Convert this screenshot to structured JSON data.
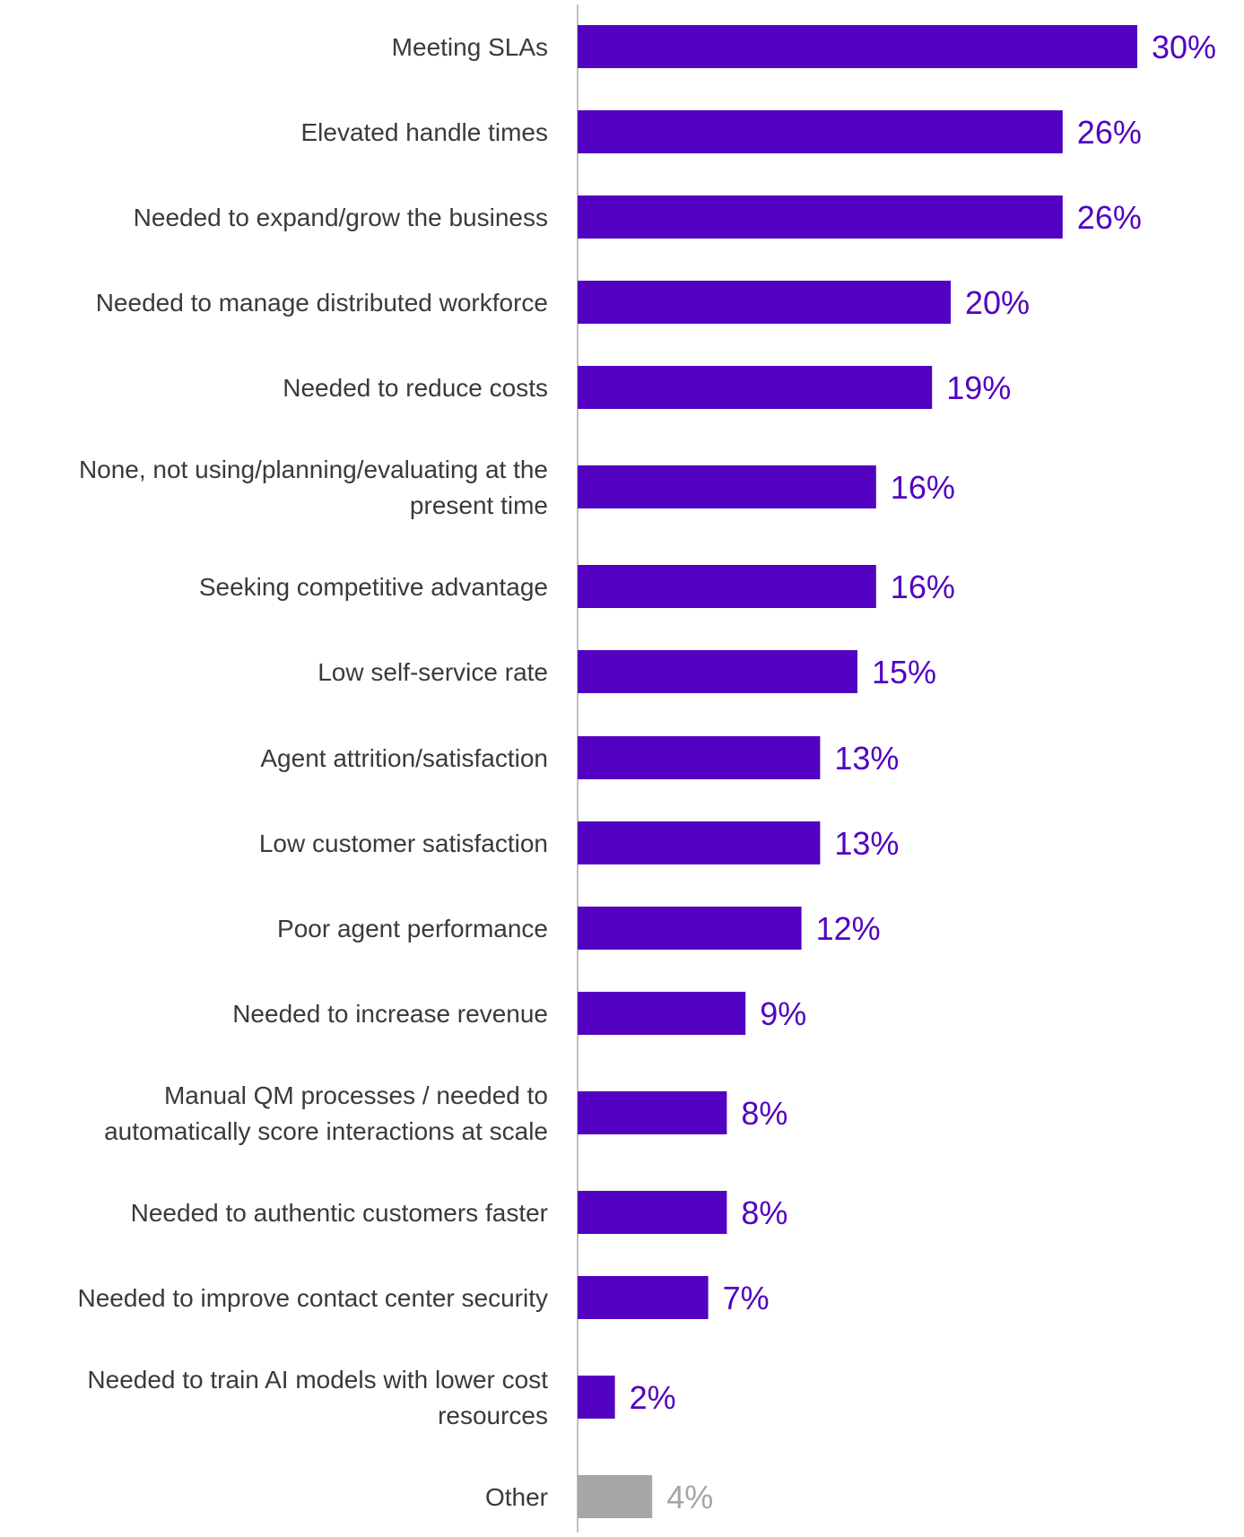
{
  "colors": {
    "bar": "#5202C0",
    "other_bar": "#A6A6A6",
    "axis": "#BFBFBF",
    "label_text": "#3A3A3A"
  },
  "chart_data": {
    "type": "bar",
    "orientation": "horizontal",
    "title": "",
    "xlabel": "",
    "ylabel": "",
    "xlim": [
      0,
      30
    ],
    "grid": false,
    "legend": "none",
    "categories": [
      "Meeting SLAs",
      "Elevated handle times",
      "Needed to expand/grow the business",
      "Needed to manage distributed workforce",
      "Needed to reduce costs",
      "None, not using/planning/evaluating at the present time",
      "Seeking competitive advantage",
      "Low self-service rate",
      "Agent attrition/satisfaction",
      "Low customer satisfaction",
      "Poor agent performance",
      "Needed to increase revenue",
      "Manual QM processes / needed to automatically score interactions at scale",
      "Needed to authentic customers faster",
      "Needed to improve contact center security",
      "Needed to train AI models with lower cost resources",
      "Other"
    ],
    "label_lines": [
      [
        "Meeting SLAs"
      ],
      [
        "Elevated handle times"
      ],
      [
        "Needed to expand/grow the business"
      ],
      [
        "Needed to manage distributed workforce"
      ],
      [
        "Needed to reduce costs"
      ],
      [
        "None, not using/planning/evaluating at the",
        "present time"
      ],
      [
        "Seeking competitive advantage"
      ],
      [
        "Low self-service rate"
      ],
      [
        "Agent attrition/satisfaction"
      ],
      [
        "Low customer satisfaction"
      ],
      [
        "Poor agent performance"
      ],
      [
        "Needed to increase revenue"
      ],
      [
        "Manual QM processes / needed to",
        "automatically score interactions at scale"
      ],
      [
        "Needed to authentic customers faster"
      ],
      [
        "Needed to improve contact center security"
      ],
      [
        "Needed to train AI models with lower cost",
        "resources"
      ],
      [
        "Other"
      ]
    ],
    "values": [
      30,
      26,
      26,
      20,
      19,
      16,
      16,
      15,
      13,
      13,
      12,
      9,
      8,
      8,
      7,
      2,
      4
    ],
    "value_labels": [
      "30%",
      "26%",
      "26%",
      "20%",
      "19%",
      "16%",
      "16%",
      "15%",
      "13%",
      "13%",
      "12%",
      "9%",
      "8%",
      "8%",
      "7%",
      "2%",
      "4%"
    ],
    "highlight": [
      false,
      false,
      false,
      false,
      false,
      false,
      false,
      false,
      false,
      false,
      false,
      false,
      false,
      false,
      false,
      false,
      true
    ]
  }
}
